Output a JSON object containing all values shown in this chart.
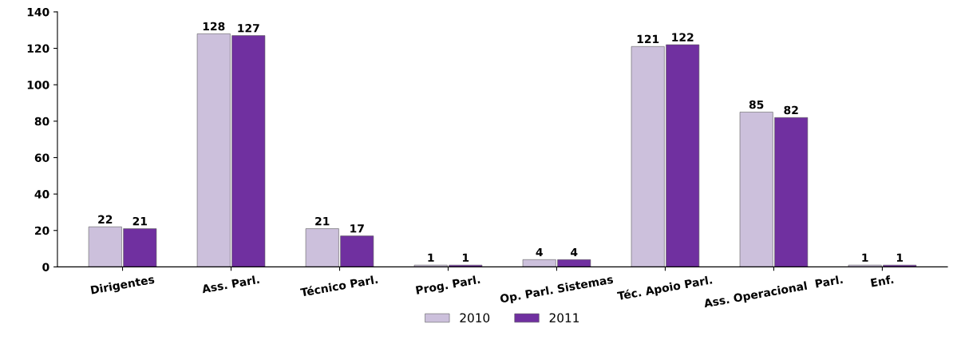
{
  "chart_data": {
    "type": "bar",
    "categories": [
      "Dirigentes",
      "Ass. Parl.",
      "Técnico Parl.",
      "Prog. Parl.",
      "Op. Parl. Sistemas",
      "Téc. Apoio Parl.",
      "Ass. Operacional  Parl.",
      "Enf."
    ],
    "series": [
      {
        "name": "2010",
        "color": "#ccc0dc",
        "values": [
          22,
          128,
          21,
          1,
          4,
          121,
          85,
          1
        ]
      },
      {
        "name": "2011",
        "color": "#7030a0",
        "values": [
          21,
          127,
          17,
          1,
          4,
          122,
          82,
          1
        ]
      }
    ],
    "ylim": [
      0,
      140
    ],
    "yticks": [
      0,
      20,
      40,
      60,
      80,
      100,
      120,
      140
    ],
    "data_labels": true,
    "grid": false,
    "legend": "bottom"
  }
}
